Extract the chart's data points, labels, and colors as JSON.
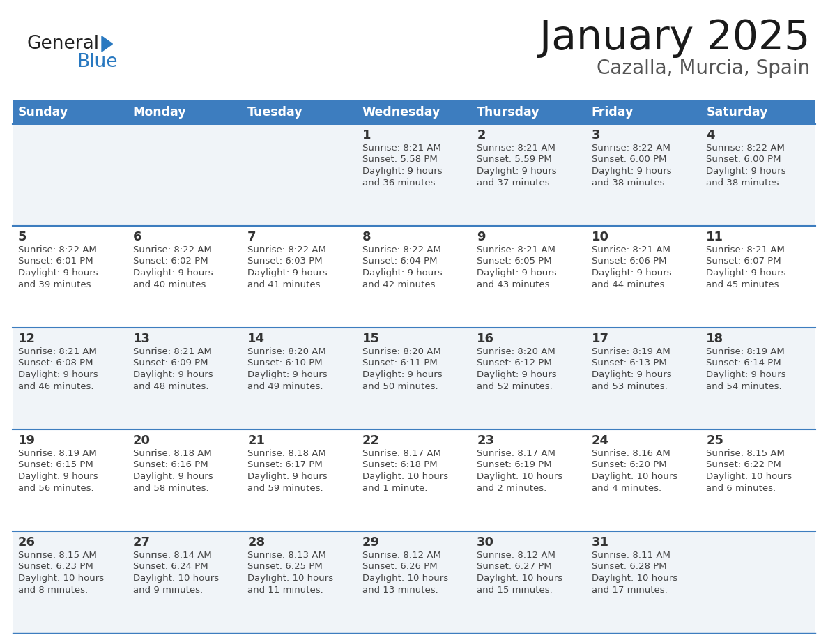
{
  "title": "January 2025",
  "subtitle": "Cazalla, Murcia, Spain",
  "header_bg": "#3d7dbf",
  "header_text_color": "#ffffff",
  "day_names": [
    "Sunday",
    "Monday",
    "Tuesday",
    "Wednesday",
    "Thursday",
    "Friday",
    "Saturday"
  ],
  "row_bg_odd": "#f0f4f8",
  "row_bg_even": "#ffffff",
  "cell_border_color": "#3d7dbf",
  "day_num_color": "#333333",
  "cell_text_color": "#444444",
  "logo_general_color": "#222222",
  "logo_blue_color": "#2878c0",
  "calendar": [
    [
      null,
      null,
      null,
      {
        "day": 1,
        "sunrise": "8:21 AM",
        "sunset": "5:58 PM",
        "daylight": "9 hours\nand 36 minutes."
      },
      {
        "day": 2,
        "sunrise": "8:21 AM",
        "sunset": "5:59 PM",
        "daylight": "9 hours\nand 37 minutes."
      },
      {
        "day": 3,
        "sunrise": "8:22 AM",
        "sunset": "6:00 PM",
        "daylight": "9 hours\nand 38 minutes."
      },
      {
        "day": 4,
        "sunrise": "8:22 AM",
        "sunset": "6:00 PM",
        "daylight": "9 hours\nand 38 minutes."
      }
    ],
    [
      {
        "day": 5,
        "sunrise": "8:22 AM",
        "sunset": "6:01 PM",
        "daylight": "9 hours\nand 39 minutes."
      },
      {
        "day": 6,
        "sunrise": "8:22 AM",
        "sunset": "6:02 PM",
        "daylight": "9 hours\nand 40 minutes."
      },
      {
        "day": 7,
        "sunrise": "8:22 AM",
        "sunset": "6:03 PM",
        "daylight": "9 hours\nand 41 minutes."
      },
      {
        "day": 8,
        "sunrise": "8:22 AM",
        "sunset": "6:04 PM",
        "daylight": "9 hours\nand 42 minutes."
      },
      {
        "day": 9,
        "sunrise": "8:21 AM",
        "sunset": "6:05 PM",
        "daylight": "9 hours\nand 43 minutes."
      },
      {
        "day": 10,
        "sunrise": "8:21 AM",
        "sunset": "6:06 PM",
        "daylight": "9 hours\nand 44 minutes."
      },
      {
        "day": 11,
        "sunrise": "8:21 AM",
        "sunset": "6:07 PM",
        "daylight": "9 hours\nand 45 minutes."
      }
    ],
    [
      {
        "day": 12,
        "sunrise": "8:21 AM",
        "sunset": "6:08 PM",
        "daylight": "9 hours\nand 46 minutes."
      },
      {
        "day": 13,
        "sunrise": "8:21 AM",
        "sunset": "6:09 PM",
        "daylight": "9 hours\nand 48 minutes."
      },
      {
        "day": 14,
        "sunrise": "8:20 AM",
        "sunset": "6:10 PM",
        "daylight": "9 hours\nand 49 minutes."
      },
      {
        "day": 15,
        "sunrise": "8:20 AM",
        "sunset": "6:11 PM",
        "daylight": "9 hours\nand 50 minutes."
      },
      {
        "day": 16,
        "sunrise": "8:20 AM",
        "sunset": "6:12 PM",
        "daylight": "9 hours\nand 52 minutes."
      },
      {
        "day": 17,
        "sunrise": "8:19 AM",
        "sunset": "6:13 PM",
        "daylight": "9 hours\nand 53 minutes."
      },
      {
        "day": 18,
        "sunrise": "8:19 AM",
        "sunset": "6:14 PM",
        "daylight": "9 hours\nand 54 minutes."
      }
    ],
    [
      {
        "day": 19,
        "sunrise": "8:19 AM",
        "sunset": "6:15 PM",
        "daylight": "9 hours\nand 56 minutes."
      },
      {
        "day": 20,
        "sunrise": "8:18 AM",
        "sunset": "6:16 PM",
        "daylight": "9 hours\nand 58 minutes."
      },
      {
        "day": 21,
        "sunrise": "8:18 AM",
        "sunset": "6:17 PM",
        "daylight": "9 hours\nand 59 minutes."
      },
      {
        "day": 22,
        "sunrise": "8:17 AM",
        "sunset": "6:18 PM",
        "daylight": "10 hours\nand 1 minute."
      },
      {
        "day": 23,
        "sunrise": "8:17 AM",
        "sunset": "6:19 PM",
        "daylight": "10 hours\nand 2 minutes."
      },
      {
        "day": 24,
        "sunrise": "8:16 AM",
        "sunset": "6:20 PM",
        "daylight": "10 hours\nand 4 minutes."
      },
      {
        "day": 25,
        "sunrise": "8:15 AM",
        "sunset": "6:22 PM",
        "daylight": "10 hours\nand 6 minutes."
      }
    ],
    [
      {
        "day": 26,
        "sunrise": "8:15 AM",
        "sunset": "6:23 PM",
        "daylight": "10 hours\nand 8 minutes."
      },
      {
        "day": 27,
        "sunrise": "8:14 AM",
        "sunset": "6:24 PM",
        "daylight": "10 hours\nand 9 minutes."
      },
      {
        "day": 28,
        "sunrise": "8:13 AM",
        "sunset": "6:25 PM",
        "daylight": "10 hours\nand 11 minutes."
      },
      {
        "day": 29,
        "sunrise": "8:12 AM",
        "sunset": "6:26 PM",
        "daylight": "10 hours\nand 13 minutes."
      },
      {
        "day": 30,
        "sunrise": "8:12 AM",
        "sunset": "6:27 PM",
        "daylight": "10 hours\nand 15 minutes."
      },
      {
        "day": 31,
        "sunrise": "8:11 AM",
        "sunset": "6:28 PM",
        "daylight": "10 hours\nand 17 minutes."
      },
      null
    ]
  ]
}
